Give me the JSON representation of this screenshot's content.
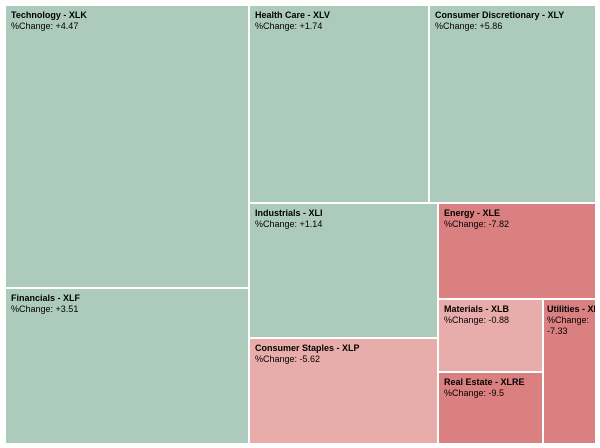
{
  "chart_data": {
    "type": "treemap",
    "metric_label": "%Change:",
    "items": [
      {
        "id": "xlk",
        "name": "Technology - XLK",
        "change": "+4.47",
        "color": "#adcbbd"
      },
      {
        "id": "xlf",
        "name": "Financials - XLF",
        "change": "+3.51",
        "color": "#adcbbd"
      },
      {
        "id": "xlv",
        "name": "Health Care - XLV",
        "change": "+1.74",
        "color": "#adcbbd"
      },
      {
        "id": "xly",
        "name": "Consumer Discretionary - XLY",
        "change": "+5.86",
        "color": "#adcbbd"
      },
      {
        "id": "xli",
        "name": "Industrials - XLI",
        "change": "+1.14",
        "color": "#adcbbd"
      },
      {
        "id": "xle",
        "name": "Energy - XLE",
        "change": "-7.82",
        "color": "#db8080"
      },
      {
        "id": "xlp",
        "name": "Consumer Staples - XLP",
        "change": "-5.62",
        "color": "#e8adaa"
      },
      {
        "id": "xlb",
        "name": "Materials - XLB",
        "change": "-0.88",
        "color": "#e8adaa"
      },
      {
        "id": "xlre",
        "name": "Real Estate - XLRE",
        "change": "-9.5",
        "color": "#db8080"
      },
      {
        "id": "xlu",
        "name": "Utilities - XLU",
        "change": "-7.33",
        "color": "#db8080"
      }
    ]
  }
}
